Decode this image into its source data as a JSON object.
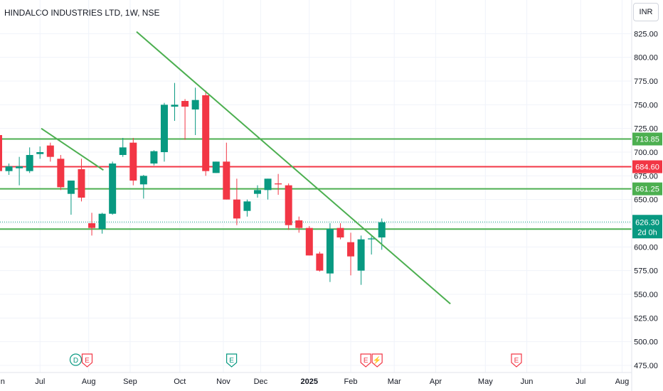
{
  "header": {
    "title": "HINDALCO INDUSTRIES LTD, 1W, NSE"
  },
  "currency_label": "INR",
  "colors": {
    "up": "#089981",
    "down": "#f23645",
    "trendline": "#4caf50",
    "support": "#4caf50",
    "resistance": "#f23645",
    "grid": "#f0f3fa",
    "text": "#131722"
  },
  "chart_data": {
    "type": "candlestick",
    "ylim": [
      475,
      835
    ],
    "y_ticks": [
      "475.00",
      "500.00",
      "525.00",
      "550.00",
      "575.00",
      "600.00",
      "625.00",
      "650.00",
      "675.00",
      "700.00",
      "725.00",
      "750.00",
      "775.00",
      "800.00",
      "825.00"
    ],
    "x_ticks": [
      "Jun",
      "Jul",
      "Aug",
      "Sep",
      "Oct",
      "Nov",
      "Dec",
      "2025",
      "Feb",
      "Mar",
      "Apr",
      "May",
      "Jun",
      "Jul",
      "Aug"
    ],
    "candles": [
      {
        "o": 718,
        "h": 725,
        "l": 678,
        "c": 680
      },
      {
        "o": 680,
        "h": 688,
        "l": 676,
        "c": 685
      },
      {
        "o": 683,
        "h": 695,
        "l": 665,
        "c": 685
      },
      {
        "o": 680,
        "h": 705,
        "l": 678,
        "c": 697
      },
      {
        "o": 698,
        "h": 706,
        "l": 693,
        "c": 700
      },
      {
        "o": 707,
        "h": 710,
        "l": 690,
        "c": 695
      },
      {
        "o": 693,
        "h": 697,
        "l": 660,
        "c": 663
      },
      {
        "o": 656,
        "h": 668,
        "l": 634,
        "c": 670
      },
      {
        "o": 682,
        "h": 693,
        "l": 648,
        "c": 652
      },
      {
        "o": 625,
        "h": 636,
        "l": 612,
        "c": 620
      },
      {
        "o": 619,
        "h": 636,
        "l": 614,
        "c": 635
      },
      {
        "o": 635,
        "h": 690,
        "l": 634,
        "c": 688
      },
      {
        "o": 697,
        "h": 715,
        "l": 695,
        "c": 705
      },
      {
        "o": 710,
        "h": 715,
        "l": 665,
        "c": 670
      },
      {
        "o": 666,
        "h": 676,
        "l": 651,
        "c": 675
      },
      {
        "o": 688,
        "h": 702,
        "l": 686,
        "c": 701
      },
      {
        "o": 700,
        "h": 752,
        "l": 690,
        "c": 750
      },
      {
        "o": 748,
        "h": 773,
        "l": 733,
        "c": 750
      },
      {
        "o": 754,
        "h": 756,
        "l": 713,
        "c": 748
      },
      {
        "o": 745,
        "h": 768,
        "l": 718,
        "c": 755
      },
      {
        "o": 760,
        "h": 765,
        "l": 675,
        "c": 680
      },
      {
        "o": 678,
        "h": 690,
        "l": 678,
        "c": 690
      },
      {
        "o": 690,
        "h": 710,
        "l": 650,
        "c": 650
      },
      {
        "o": 650,
        "h": 672,
        "l": 623,
        "c": 630
      },
      {
        "o": 638,
        "h": 650,
        "l": 632,
        "c": 648
      },
      {
        "o": 656,
        "h": 665,
        "l": 652,
        "c": 660
      },
      {
        "o": 660,
        "h": 672,
        "l": 650,
        "c": 672
      },
      {
        "o": 667,
        "h": 677,
        "l": 655,
        "c": 666
      },
      {
        "o": 665,
        "h": 667,
        "l": 618,
        "c": 623
      },
      {
        "o": 628,
        "h": 632,
        "l": 615,
        "c": 620
      },
      {
        "o": 620,
        "h": 622,
        "l": 591,
        "c": 591
      },
      {
        "o": 593,
        "h": 595,
        "l": 574,
        "c": 575
      },
      {
        "o": 572,
        "h": 625,
        "l": 563,
        "c": 619
      },
      {
        "o": 620,
        "h": 625,
        "l": 608,
        "c": 610
      },
      {
        "o": 605,
        "h": 615,
        "l": 570,
        "c": 590
      },
      {
        "o": 575,
        "h": 612,
        "l": 560,
        "c": 608
      },
      {
        "o": 608,
        "h": 611,
        "l": 592,
        "c": 609
      },
      {
        "o": 610,
        "h": 630,
        "l": 597,
        "c": 626
      }
    ],
    "trendlines": [
      {
        "from": {
          "x": 0,
          "y": 725
        },
        "to": {
          "x": 6,
          "y": 681
        }
      },
      {
        "from": {
          "x": 9.2,
          "y": 827
        },
        "to": {
          "x": 39.5,
          "y": 540
        }
      }
    ],
    "horizontal_levels": [
      {
        "value": 713.85,
        "label": "713.85",
        "color": "#4caf50"
      },
      {
        "value": 684.6,
        "label": "684.60",
        "color": "#f23645"
      },
      {
        "value": 661.25,
        "label": "661.25",
        "color": "#4caf50"
      },
      {
        "value": 618.85,
        "label": "618.85",
        "color": "#4caf50"
      }
    ],
    "last_price": {
      "value": 626.3,
      "label": "626.30",
      "countdown": "2d 0h"
    },
    "events": [
      {
        "x": 8,
        "icons": [
          "D",
          "E"
        ]
      },
      {
        "x": 22.5,
        "icons": [
          "E"
        ]
      },
      {
        "x": 36,
        "icons": [
          "E",
          "⚡"
        ]
      },
      {
        "x": 50,
        "icons": [
          "E"
        ]
      }
    ]
  }
}
